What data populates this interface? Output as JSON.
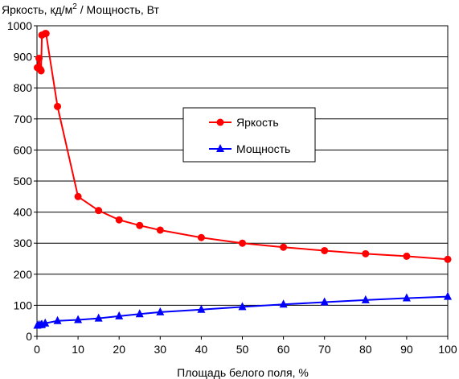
{
  "chart_data": {
    "type": "line",
    "ylabel": "Яркость, кд/м",
    "ylabel_sup": "2",
    "ylabel_tail": " / Мощность, Вт",
    "xlabel": "Площадь белого поля, %",
    "xlim": [
      0,
      100
    ],
    "ylim": [
      0,
      1000
    ],
    "x_ticks": [
      0,
      10,
      20,
      30,
      40,
      50,
      60,
      70,
      80,
      90,
      100
    ],
    "y_ticks": [
      0,
      100,
      200,
      300,
      400,
      500,
      600,
      700,
      800,
      900,
      1000
    ],
    "grid": "horizontal",
    "legend_position": "center-right",
    "series": [
      {
        "name": "Яркость",
        "color": "#ff0000",
        "marker": "circle",
        "points": [
          [
            0.1,
            865
          ],
          [
            0.5,
            895
          ],
          [
            0.8,
            860
          ],
          [
            1,
            855
          ],
          [
            1.2,
            970
          ],
          [
            2,
            975
          ],
          [
            2.2,
            975
          ],
          [
            5,
            740
          ],
          [
            10,
            450
          ],
          [
            15,
            405
          ],
          [
            20,
            375
          ],
          [
            25,
            357
          ],
          [
            30,
            342
          ],
          [
            40,
            318
          ],
          [
            50,
            300
          ],
          [
            60,
            287
          ],
          [
            70,
            276
          ],
          [
            80,
            266
          ],
          [
            90,
            258
          ],
          [
            100,
            248
          ]
        ]
      },
      {
        "name": "Мощность",
        "color": "#0000ff",
        "marker": "triangle",
        "points": [
          [
            0.1,
            35
          ],
          [
            0.5,
            37
          ],
          [
            1,
            37
          ],
          [
            1.2,
            38
          ],
          [
            2,
            42
          ],
          [
            5,
            50
          ],
          [
            10,
            53
          ],
          [
            15,
            58
          ],
          [
            20,
            65
          ],
          [
            25,
            72
          ],
          [
            30,
            78
          ],
          [
            40,
            86
          ],
          [
            50,
            95
          ],
          [
            60,
            103
          ],
          [
            70,
            110
          ],
          [
            80,
            117
          ],
          [
            90,
            123
          ],
          [
            100,
            128
          ]
        ]
      }
    ]
  }
}
